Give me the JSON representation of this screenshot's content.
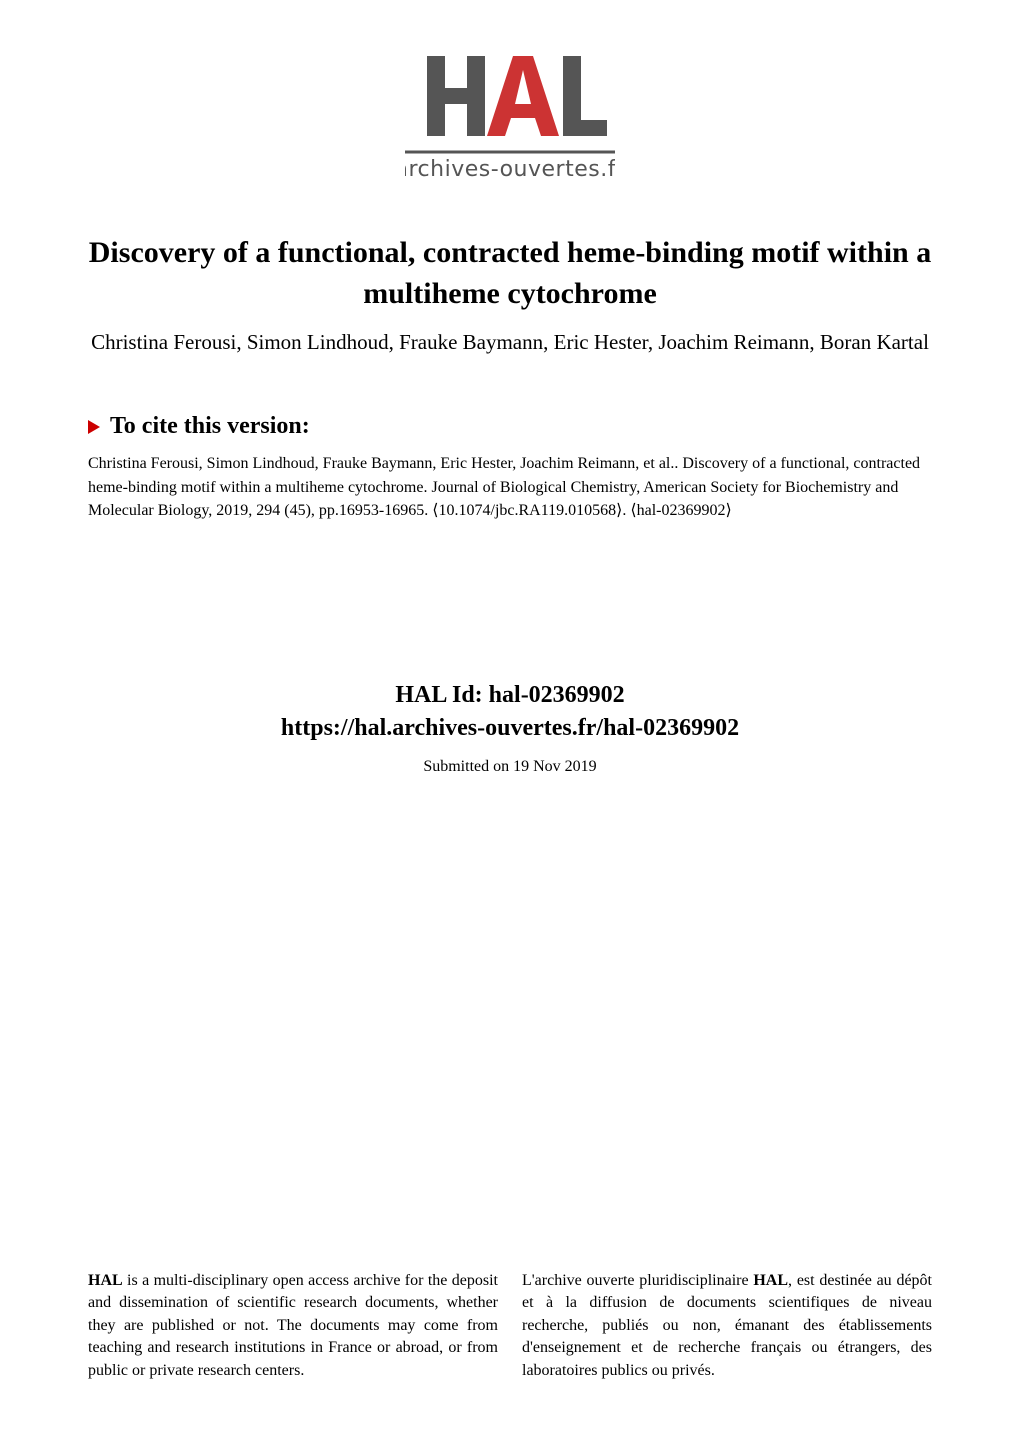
{
  "logo": {
    "top_text": "HAL",
    "bottom_text": "archives-ouvertes.fr",
    "bar_color": "#555555",
    "ao_color": "#cc3333",
    "text_color": "#555555"
  },
  "header": {
    "title": "Discovery of a functional, contracted heme-binding motif within a multiheme cytochrome",
    "authors": "Christina Ferousi, Simon Lindhoud, Frauke Baymann, Eric Hester, Joachim Reimann, Boran Kartal"
  },
  "cite": {
    "heading": "To cite this version:",
    "triangle_color": "#cc0000",
    "text": "Christina Ferousi, Simon Lindhoud, Frauke Baymann, Eric Hester, Joachim Reimann, et al.. Discovery of a functional, contracted heme-binding motif within a multiheme cytochrome. Journal of Biological Chemistry, American Society for Biochemistry and Molecular Biology, 2019, 294 (45), pp.16953-16965. ⟨10.1074/jbc.RA119.010568⟩. ⟨hal-02369902⟩"
  },
  "hal": {
    "id": "HAL Id: hal-02369902",
    "url": "https://hal.archives-ouvertes.fr/hal-02369902",
    "submitted": "Submitted on 19 Nov 2019"
  },
  "footer": {
    "left_html": "<b>HAL</b> is a multi-disciplinary open access archive for the deposit and dissemination of scientific research documents, whether they are published or not. The documents may come from teaching and research institutions in France or abroad, or from public or private research centers.",
    "right_html": "L'archive ouverte pluridisciplinaire <b>HAL</b>, est destinée au dépôt et à la diffusion de documents scientifiques de niveau recherche, publiés ou non, émanant des établissements d'enseignement et de recherche français ou étrangers, des laboratoires publics ou privés."
  }
}
